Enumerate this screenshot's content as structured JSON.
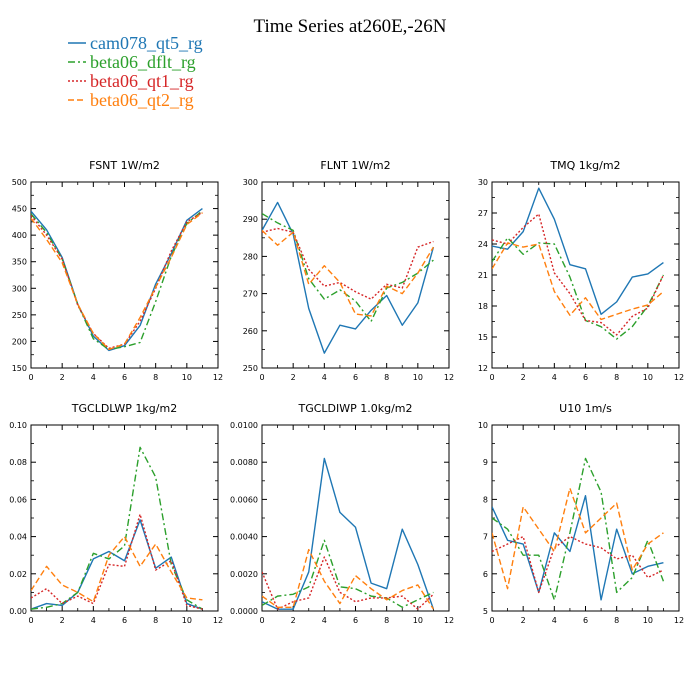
{
  "figure_title": "Time Series at260E,-26N",
  "legend": [
    {
      "label": "cam078_qt5_rg",
      "color": "#1f77b4",
      "dash": "solid"
    },
    {
      "label": "beta06_dflt_rg",
      "color": "#2ca02c",
      "dash": "dashdot"
    },
    {
      "label": "beta06_qt1_rg",
      "color": "#d62728",
      "dash": "dotted"
    },
    {
      "label": "beta06_qt2_rg",
      "color": "#ff7f0e",
      "dash": "dashed"
    }
  ],
  "chart_data": [
    {
      "type": "line",
      "title": "FSNT   1W/m2",
      "xlim": [
        0,
        12
      ],
      "xticks": [
        0,
        2,
        4,
        6,
        8,
        10,
        12
      ],
      "ylim": [
        150,
        500
      ],
      "yticks": [
        150,
        200,
        250,
        300,
        350,
        400,
        450,
        500
      ],
      "x": [
        0,
        1,
        2,
        3,
        4,
        5,
        6,
        7,
        8,
        9,
        10,
        11
      ],
      "series": [
        {
          "name": "cam078_qt5_rg",
          "values": [
            445,
            410,
            358,
            270,
            210,
            183,
            192,
            230,
            308,
            365,
            428,
            450
          ]
        },
        {
          "name": "beta06_dflt_rg",
          "values": [
            440,
            405,
            355,
            270,
            205,
            185,
            190,
            198,
            275,
            360,
            422,
            446
          ]
        },
        {
          "name": "beta06_qt1_rg",
          "values": [
            437,
            400,
            355,
            268,
            215,
            187,
            195,
            238,
            300,
            370,
            425,
            443
          ]
        },
        {
          "name": "beta06_qt2_rg",
          "values": [
            432,
            392,
            348,
            270,
            215,
            185,
            195,
            245,
            302,
            358,
            420,
            442
          ]
        }
      ]
    },
    {
      "type": "line",
      "title": "FLNT   1W/m2",
      "xlim": [
        0,
        12
      ],
      "xticks": [
        0,
        2,
        4,
        6,
        8,
        10,
        12
      ],
      "ylim": [
        250,
        300
      ],
      "yticks": [
        250,
        260,
        270,
        280,
        290,
        300
      ],
      "x": [
        0,
        1,
        2,
        3,
        4,
        5,
        6,
        7,
        8,
        9,
        10,
        11
      ],
      "series": [
        {
          "name": "cam078_qt5_rg",
          "values": [
            287,
            294.5,
            286,
            266,
            254,
            261.5,
            260.5,
            265.5,
            269.5,
            261.5,
            267.5,
            282.5
          ]
        },
        {
          "name": "beta06_dflt_rg",
          "values": [
            291.5,
            289,
            287,
            274,
            268.5,
            271,
            268,
            262.5,
            271.5,
            273,
            275.5,
            279
          ]
        },
        {
          "name": "beta06_qt1_rg",
          "values": [
            286.5,
            287.5,
            286.5,
            276.5,
            272,
            273,
            270.5,
            268.5,
            272.5,
            271.5,
            282.5,
            284
          ]
        },
        {
          "name": "beta06_qt2_rg",
          "values": [
            287,
            283,
            286.5,
            272.5,
            277.5,
            273,
            264.5,
            264,
            272,
            270,
            275.5,
            282.5
          ]
        }
      ]
    },
    {
      "type": "line",
      "title": "TMQ   1kg/m2",
      "xlim": [
        0,
        12
      ],
      "xticks": [
        0,
        2,
        4,
        6,
        8,
        10,
        12
      ],
      "ylim": [
        12,
        30
      ],
      "yticks": [
        12,
        15,
        18,
        21,
        24,
        27,
        30
      ],
      "x": [
        0,
        1,
        2,
        3,
        4,
        5,
        6,
        7,
        8,
        9,
        10,
        11
      ],
      "series": [
        {
          "name": "cam078_qt5_rg",
          "values": [
            23.8,
            23.5,
            25.2,
            29.4,
            26.4,
            22.0,
            21.6,
            17.2,
            18.4,
            20.8,
            21.1,
            22.2
          ]
        },
        {
          "name": "beta06_dflt_rg",
          "values": [
            22.3,
            24.6,
            23.0,
            24.1,
            24.0,
            20.8,
            16.6,
            16.0,
            14.8,
            16.0,
            18.0,
            21.0
          ]
        },
        {
          "name": "beta06_qt1_rg",
          "values": [
            24.4,
            24.0,
            25.6,
            26.9,
            21.2,
            19.2,
            16.6,
            16.4,
            15.2,
            17.0,
            17.8,
            21.0
          ]
        },
        {
          "name": "beta06_qt2_rg",
          "values": [
            21.6,
            24.1,
            23.7,
            24.0,
            19.4,
            17.1,
            18.8,
            16.7,
            17.2,
            17.7,
            18.1,
            19.4
          ]
        }
      ]
    },
    {
      "type": "line",
      "title": "TGCLDLWP   1kg/m2",
      "xlim": [
        0,
        12
      ],
      "xticks": [
        0,
        2,
        4,
        6,
        8,
        10,
        12
      ],
      "ylim": [
        0,
        0.1
      ],
      "yticks": [
        0,
        0.02,
        0.04,
        0.06,
        0.08,
        0.1
      ],
      "ytick_labels": [
        "0.00",
        "0.02",
        "0.04",
        "0.06",
        "0.08",
        "0.10"
      ],
      "x": [
        0,
        1,
        2,
        3,
        4,
        5,
        6,
        7,
        8,
        9,
        10,
        11
      ],
      "series": [
        {
          "name": "cam078_qt5_rg",
          "values": [
            0.001,
            0.004,
            0.003,
            0.01,
            0.028,
            0.032,
            0.027,
            0.049,
            0.023,
            0.029,
            0.004,
            0.001
          ]
        },
        {
          "name": "beta06_dflt_rg",
          "values": [
            0.001,
            0.002,
            0.004,
            0.01,
            0.031,
            0.028,
            0.035,
            0.088,
            0.072,
            0.025,
            0.006,
            0.001
          ]
        },
        {
          "name": "beta06_qt1_rg",
          "values": [
            0.007,
            0.012,
            0.004,
            0.008,
            0.004,
            0.025,
            0.024,
            0.052,
            0.022,
            0.027,
            0.003,
            0.001
          ]
        },
        {
          "name": "beta06_qt2_rg",
          "values": [
            0.011,
            0.024,
            0.014,
            0.01,
            0.005,
            0.03,
            0.04,
            0.024,
            0.036,
            0.021,
            0.007,
            0.006
          ]
        }
      ]
    },
    {
      "type": "line",
      "title": "TGCLDIWP   1.0kg/m2",
      "xlim": [
        0,
        12
      ],
      "xticks": [
        0,
        2,
        4,
        6,
        8,
        10,
        12
      ],
      "ylim": [
        0,
        0.01
      ],
      "yticks": [
        0,
        0.002,
        0.004,
        0.006,
        0.008,
        0.01
      ],
      "ytick_labels": [
        "0.0000",
        "0.0020",
        "0.0040",
        "0.0060",
        "0.0080",
        "0.0100"
      ],
      "x": [
        0,
        1,
        2,
        3,
        4,
        5,
        6,
        7,
        8,
        9,
        10,
        11
      ],
      "series": [
        {
          "name": "cam078_qt5_rg",
          "values": [
            0.0005,
            0.0001,
            0.0001,
            0.0021,
            0.0082,
            0.0053,
            0.0045,
            0.0015,
            0.0012,
            0.0044,
            0.0025,
            0.0001
          ]
        },
        {
          "name": "beta06_dflt_rg",
          "values": [
            0.0003,
            0.0008,
            0.0009,
            0.0013,
            0.0038,
            0.0013,
            0.0012,
            0.0008,
            0.0007,
            0.0002,
            0.0006,
            0.001
          ]
        },
        {
          "name": "beta06_qt1_rg",
          "values": [
            0.0021,
            0.0001,
            0.0005,
            0.0007,
            0.0029,
            0.001,
            0.0005,
            0.0007,
            0.0007,
            0.0008,
            0.0001,
            0.0009
          ]
        },
        {
          "name": "beta06_qt2_rg",
          "values": [
            0.0008,
            0.0002,
            0.0002,
            0.0033,
            0.0016,
            0.0004,
            0.0019,
            0.0012,
            0.0006,
            0.0011,
            0.0014,
            0.0001
          ]
        }
      ]
    },
    {
      "type": "line",
      "title": "U10   1m/s",
      "xlim": [
        0,
        12
      ],
      "xticks": [
        0,
        2,
        4,
        6,
        8,
        10,
        12
      ],
      "ylim": [
        5,
        10
      ],
      "yticks": [
        5,
        6,
        7,
        8,
        9,
        10
      ],
      "x": [
        0,
        1,
        2,
        3,
        4,
        5,
        6,
        7,
        8,
        9,
        10,
        11
      ],
      "series": [
        {
          "name": "cam078_qt5_rg",
          "values": [
            7.8,
            6.9,
            6.8,
            5.5,
            7.1,
            6.6,
            8.1,
            5.3,
            7.2,
            6.0,
            6.2,
            6.3
          ]
        },
        {
          "name": "beta06_dflt_rg",
          "values": [
            7.5,
            7.2,
            6.5,
            6.5,
            5.3,
            7.1,
            9.1,
            8.2,
            5.5,
            5.9,
            6.9,
            5.8
          ]
        },
        {
          "name": "beta06_qt1_rg",
          "values": [
            6.6,
            6.8,
            7.0,
            5.5,
            6.7,
            7.0,
            6.8,
            6.7,
            6.4,
            6.5,
            5.9,
            6.1
          ]
        },
        {
          "name": "beta06_qt2_rg",
          "values": [
            7.1,
            5.6,
            7.8,
            7.2,
            6.6,
            8.3,
            7.1,
            7.5,
            7.9,
            6.1,
            6.8,
            7.1
          ]
        }
      ]
    }
  ]
}
